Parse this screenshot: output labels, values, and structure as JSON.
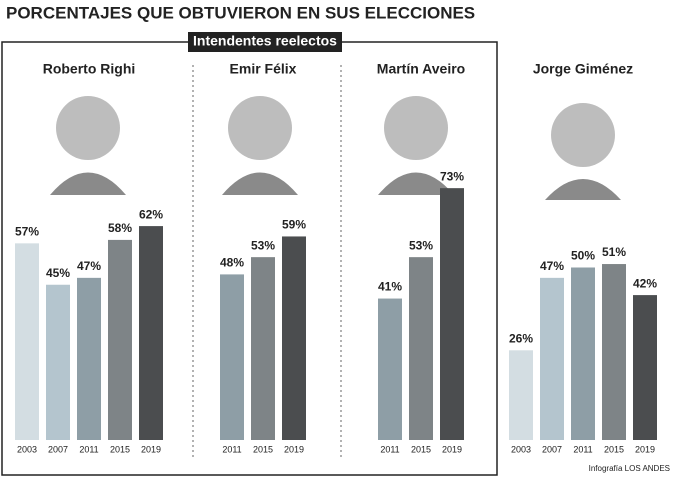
{
  "title": "PORCENTAJES QUE OBTUVIERON EN SUS ELECCIONES",
  "group_label": "Intendentes reelectos",
  "credit": "Infografía LOS ANDES",
  "chart_data": [
    {
      "type": "bar",
      "title": "Roberto Righi",
      "categories": [
        "2003",
        "2007",
        "2011",
        "2015",
        "2019"
      ],
      "values": [
        57,
        45,
        47,
        58,
        62
      ],
      "value_labels": [
        "57%",
        "45%",
        "47%",
        "58%",
        "62%"
      ],
      "colors": [
        "#d3dde2",
        "#b4c5ce",
        "#8e9ea6",
        "#7e8487",
        "#4b4d4f"
      ],
      "ylim": [
        0,
        100
      ]
    },
    {
      "type": "bar",
      "title": "Emir Félix",
      "categories": [
        "2011",
        "2015",
        "2019"
      ],
      "values": [
        48,
        53,
        59
      ],
      "value_labels": [
        "48%",
        "53%",
        "59%"
      ],
      "colors": [
        "#8e9ea6",
        "#7e8487",
        "#4b4d4f"
      ],
      "ylim": [
        0,
        100
      ]
    },
    {
      "type": "bar",
      "title": "Martín Aveiro",
      "categories": [
        "2011",
        "2015",
        "2019"
      ],
      "values": [
        41,
        53,
        73
      ],
      "value_labels": [
        "41%",
        "53%",
        "73%"
      ],
      "colors": [
        "#8e9ea6",
        "#7e8487",
        "#4b4d4f"
      ],
      "ylim": [
        0,
        100
      ]
    },
    {
      "type": "bar",
      "title": "Jorge Giménez",
      "categories": [
        "2003",
        "2007",
        "2011",
        "2015",
        "2019"
      ],
      "values": [
        26,
        47,
        50,
        51,
        42
      ],
      "value_labels": [
        "26%",
        "47%",
        "50%",
        "51%",
        "42%"
      ],
      "colors": [
        "#d3dde2",
        "#b4c5ce",
        "#8e9ea6",
        "#7e8487",
        "#4b4d4f"
      ],
      "ylim": [
        0,
        100
      ]
    }
  ]
}
